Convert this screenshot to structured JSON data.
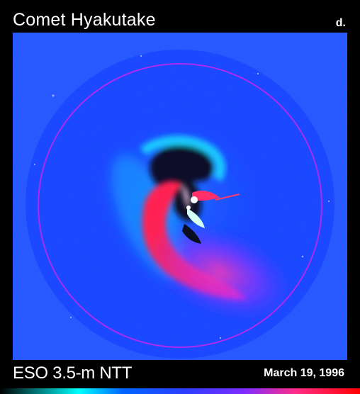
{
  "title": "Comet Hyakutake",
  "panel_label": "d.",
  "footer": {
    "telescope": "ESO 3.5-m NTT",
    "date": "March 19, 1996"
  },
  "colors": {
    "background": "#2f54ff",
    "disk": "#2343ff",
    "ring": "#b32af0",
    "red_jet": "#ff1f47",
    "cyan_halo": "#27d9ff",
    "colorbar": [
      "#000000",
      "#00ffff",
      "#0066ff",
      "#2f3cff",
      "#7f2cff",
      "#ff2d88",
      "#ff0000"
    ]
  }
}
